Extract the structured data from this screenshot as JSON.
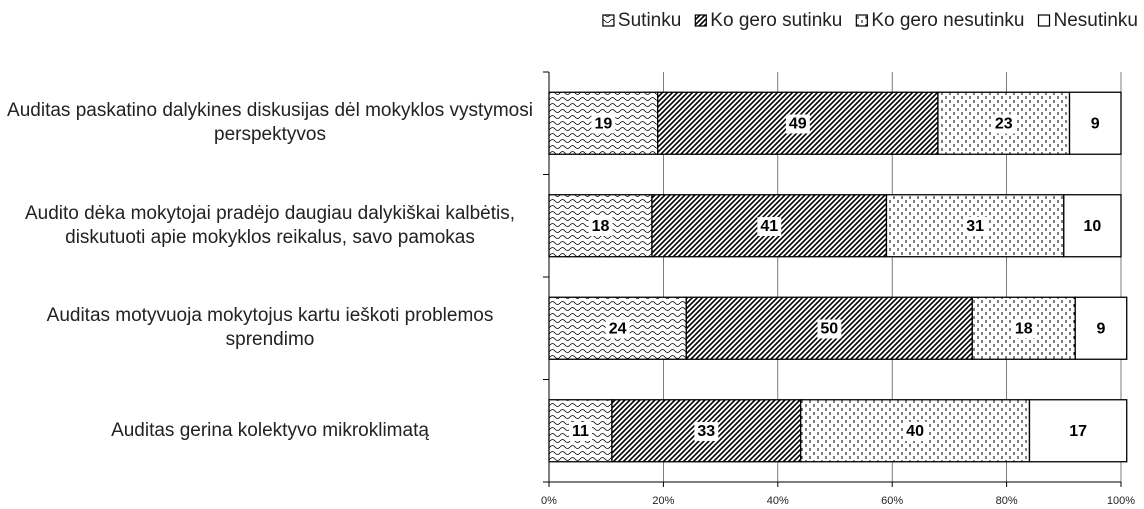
{
  "chart_data": {
    "type": "stacked-bar-horizontal",
    "categories": [
      "Auditas paskatino dalykines diskusijas dėl mokyklos vystymosi perspektyvos",
      "Audito dėka mokytojai pradėjo daugiau dalykiškai kalbėtis, diskutuoti apie mokyklos reikalus, savo pamokas",
      "Auditas motyvuoja mokytojus kartu ieškoti problemos sprendimo",
      "Auditas gerina kolektyvo mikroklimatą"
    ],
    "series": [
      {
        "name": "Sutinku",
        "color": "#000000",
        "pattern": "wave",
        "values": [
          19,
          18,
          24,
          11
        ]
      },
      {
        "name": "Ko gero sutinku",
        "color": "#000000",
        "pattern": "hatch",
        "values": [
          49,
          41,
          50,
          33
        ]
      },
      {
        "name": "Ko gero nesutinku",
        "color": "#000000",
        "pattern": "dash",
        "values": [
          23,
          31,
          18,
          40
        ]
      },
      {
        "name": "Nesutinku",
        "color": "#000000",
        "pattern": "none",
        "values": [
          9,
          10,
          9,
          17
        ]
      }
    ],
    "xlim": [
      0,
      100
    ],
    "xticks": [
      {
        "value": 0,
        "label": "0%"
      },
      {
        "value": 20,
        "label": "20%"
      },
      {
        "value": 40,
        "label": "40%"
      },
      {
        "value": 60,
        "label": "60%"
      },
      {
        "value": 80,
        "label": "80%"
      },
      {
        "value": 100,
        "label": "100%"
      }
    ],
    "grid": true,
    "legend": "top-right"
  }
}
